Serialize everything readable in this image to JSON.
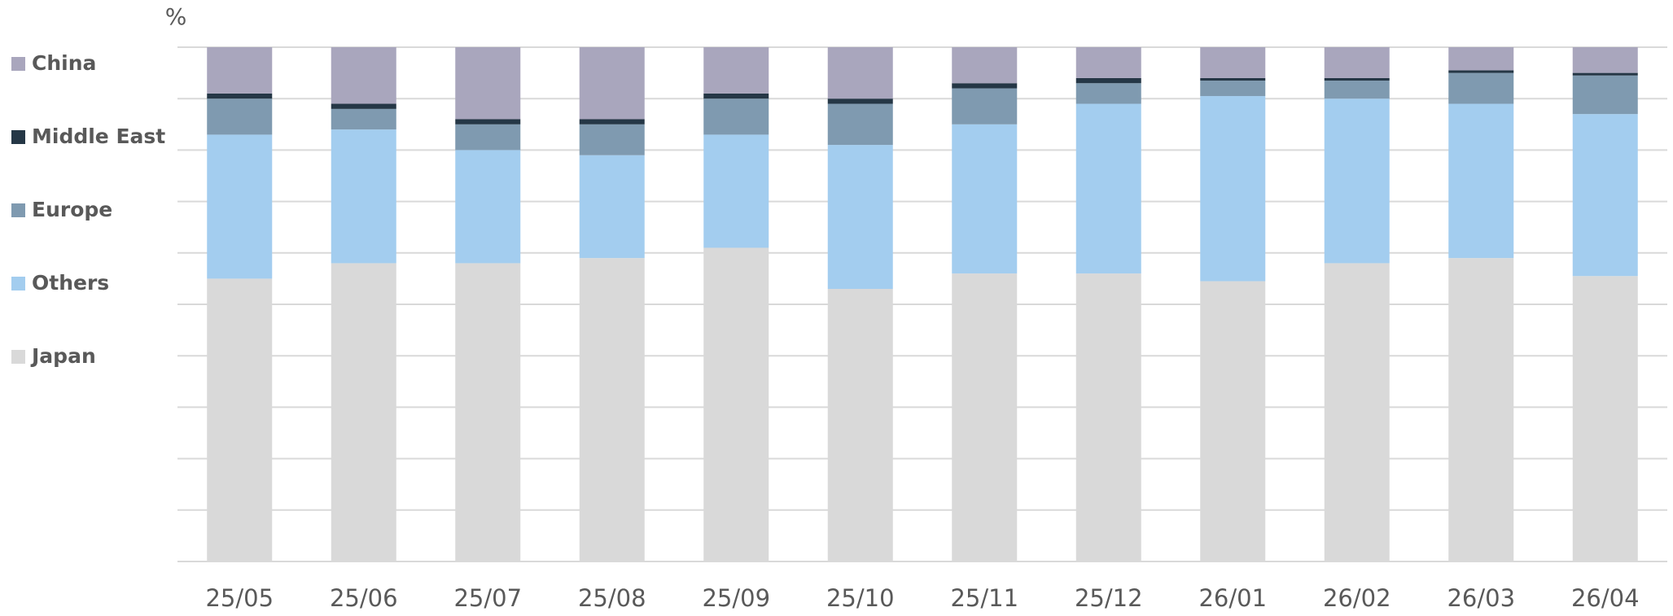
{
  "chart_data": {
    "type": "stacked-bar",
    "y_label": "%",
    "categories": [
      "25/05",
      "25/06",
      "25/07",
      "25/08",
      "25/09",
      "25/10",
      "25/11",
      "25/12",
      "26/01",
      "26/02",
      "26/03",
      "26/04"
    ],
    "series": [
      {
        "name": "Japan",
        "color": "#d9d9d9",
        "values": [
          55,
          58,
          58,
          59,
          61,
          53,
          56,
          56,
          54.5,
          58,
          59,
          55.5
        ]
      },
      {
        "name": "Others",
        "color": "#a3cdef",
        "values": [
          28,
          26,
          22,
          20,
          22,
          28,
          29,
          33,
          36,
          32,
          30,
          31.5
        ]
      },
      {
        "name": "Europe",
        "color": "#7f9ab0",
        "values": [
          7,
          4,
          5,
          6,
          7,
          8,
          7,
          4,
          3,
          3.5,
          6,
          7.5
        ]
      },
      {
        "name": "Middle East",
        "color": "#253746",
        "values": [
          1,
          1,
          1,
          1,
          1,
          1,
          1,
          1,
          0.5,
          0.5,
          0.5,
          0.5
        ]
      },
      {
        "name": "China",
        "color": "#a9a6bd",
        "values": [
          9,
          11,
          14,
          14,
          9,
          10,
          7,
          6,
          6,
          6,
          4.5,
          5
        ]
      }
    ],
    "ylim": [
      0,
      100
    ],
    "yticks": [
      0,
      10,
      20,
      30,
      40,
      50,
      60,
      70,
      80,
      90,
      100
    ],
    "grid": true
  }
}
